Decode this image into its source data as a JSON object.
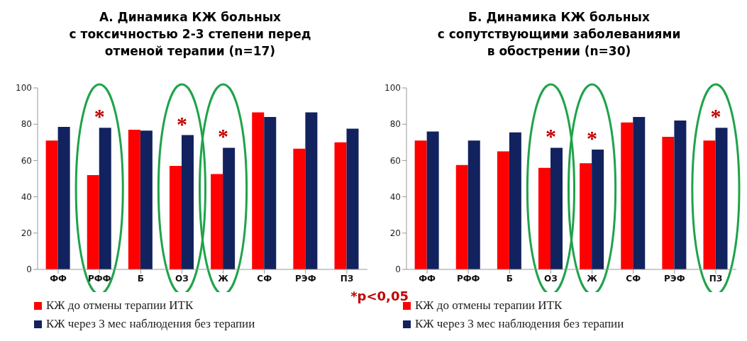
{
  "chart_data": [
    {
      "type": "bar",
      "title": "А. Динамика КЖ больных\nс токсичностью 2-3 степени перед\nотменой терапии (n=17)",
      "categories": [
        "ФФ",
        "РФФ",
        "Б",
        "ОЗ",
        "Ж",
        "СФ",
        "РЭФ",
        "ПЗ"
      ],
      "ylim": [
        0,
        100
      ],
      "yticks": [
        0,
        20,
        40,
        60,
        80,
        100
      ],
      "legend": "bottom",
      "series": [
        {
          "name": "КЖ до отмены терапии ИТК",
          "color": "#ff0000",
          "values": [
            71,
            52,
            77,
            57,
            52.5,
            86.5,
            66.5,
            70
          ]
        },
        {
          "name": "КЖ через 3 мес наблюдения без терапии",
          "color": "#12225e",
          "values": [
            78.5,
            78,
            76.5,
            74,
            67,
            84,
            86.5,
            77.5
          ]
        }
      ],
      "annotations": [
        "*",
        "*",
        "*",
        "*p<0,05"
      ]
    },
    {
      "type": "bar",
      "title": "Б. Динамика КЖ больных\nс сопутствующими заболеваниями\nв обострении (n=30)",
      "categories": [
        "ФФ",
        "РФФ",
        "Б",
        "ОЗ",
        "Ж",
        "СФ",
        "РЭФ",
        "ПЗ"
      ],
      "ylim": [
        0,
        100
      ],
      "yticks": [
        0,
        20,
        40,
        60,
        80,
        100
      ],
      "legend": "bottom",
      "series": [
        {
          "name": "КЖ до отмены терапии ИТК",
          "color": "#ff0000",
          "values": [
            71,
            57.5,
            65,
            56,
            58.5,
            81,
            73,
            71
          ]
        },
        {
          "name": "КЖ через 3 мес наблюдения без терапии",
          "color": "#12225e",
          "values": [
            76,
            71,
            75.5,
            67,
            66,
            84,
            82,
            78
          ]
        }
      ],
      "annotations": [
        "*",
        "*",
        "*"
      ]
    }
  ]
}
